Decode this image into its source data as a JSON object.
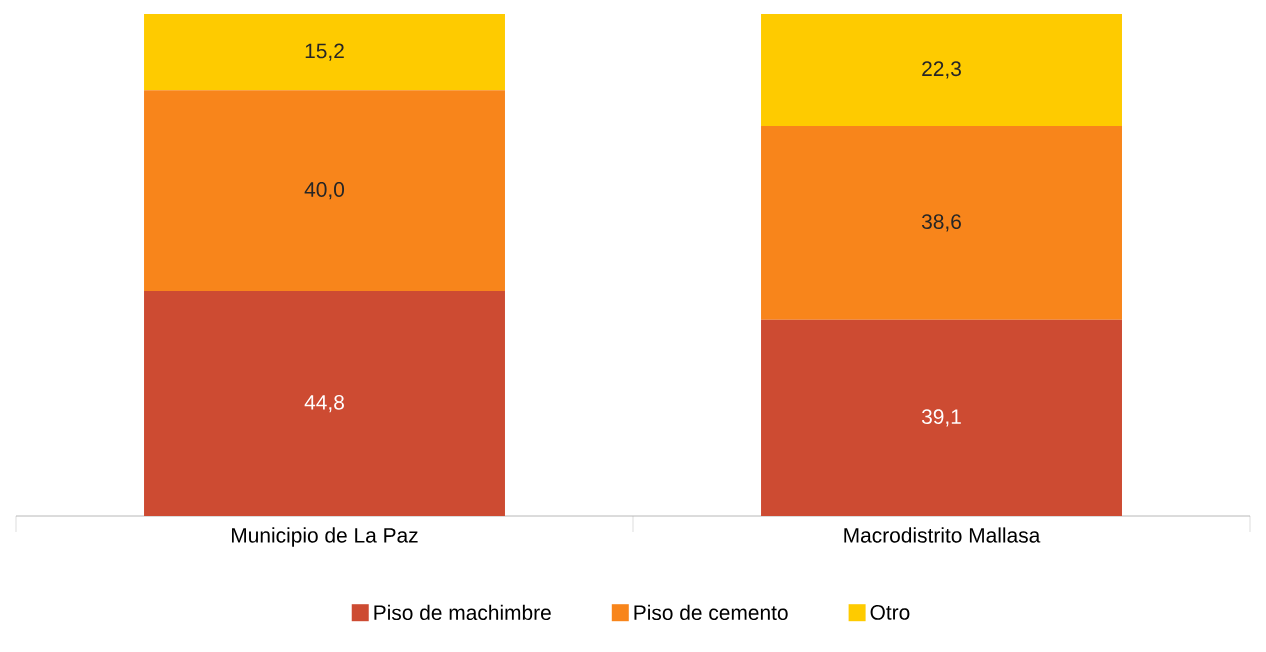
{
  "chart_data": {
    "type": "bar",
    "stacked": true,
    "categories": [
      "Municipio de La Paz",
      "Macrodistrito Mallasa"
    ],
    "series": [
      {
        "name": "Piso de machimbre",
        "color": "#cd4b32",
        "values": [
          44.8,
          39.1
        ],
        "value_labels": [
          "44,8",
          "39,1"
        ]
      },
      {
        "name": "Piso de cemento",
        "color": "#f8851b",
        "values": [
          40.0,
          38.6
        ],
        "value_labels": [
          "40,0",
          "38,6"
        ]
      },
      {
        "name": "Otro",
        "color": "#fecb00",
        "values": [
          15.2,
          22.3
        ],
        "value_labels": [
          "15,2",
          "22,3"
        ]
      }
    ],
    "legend": "bottom"
  }
}
